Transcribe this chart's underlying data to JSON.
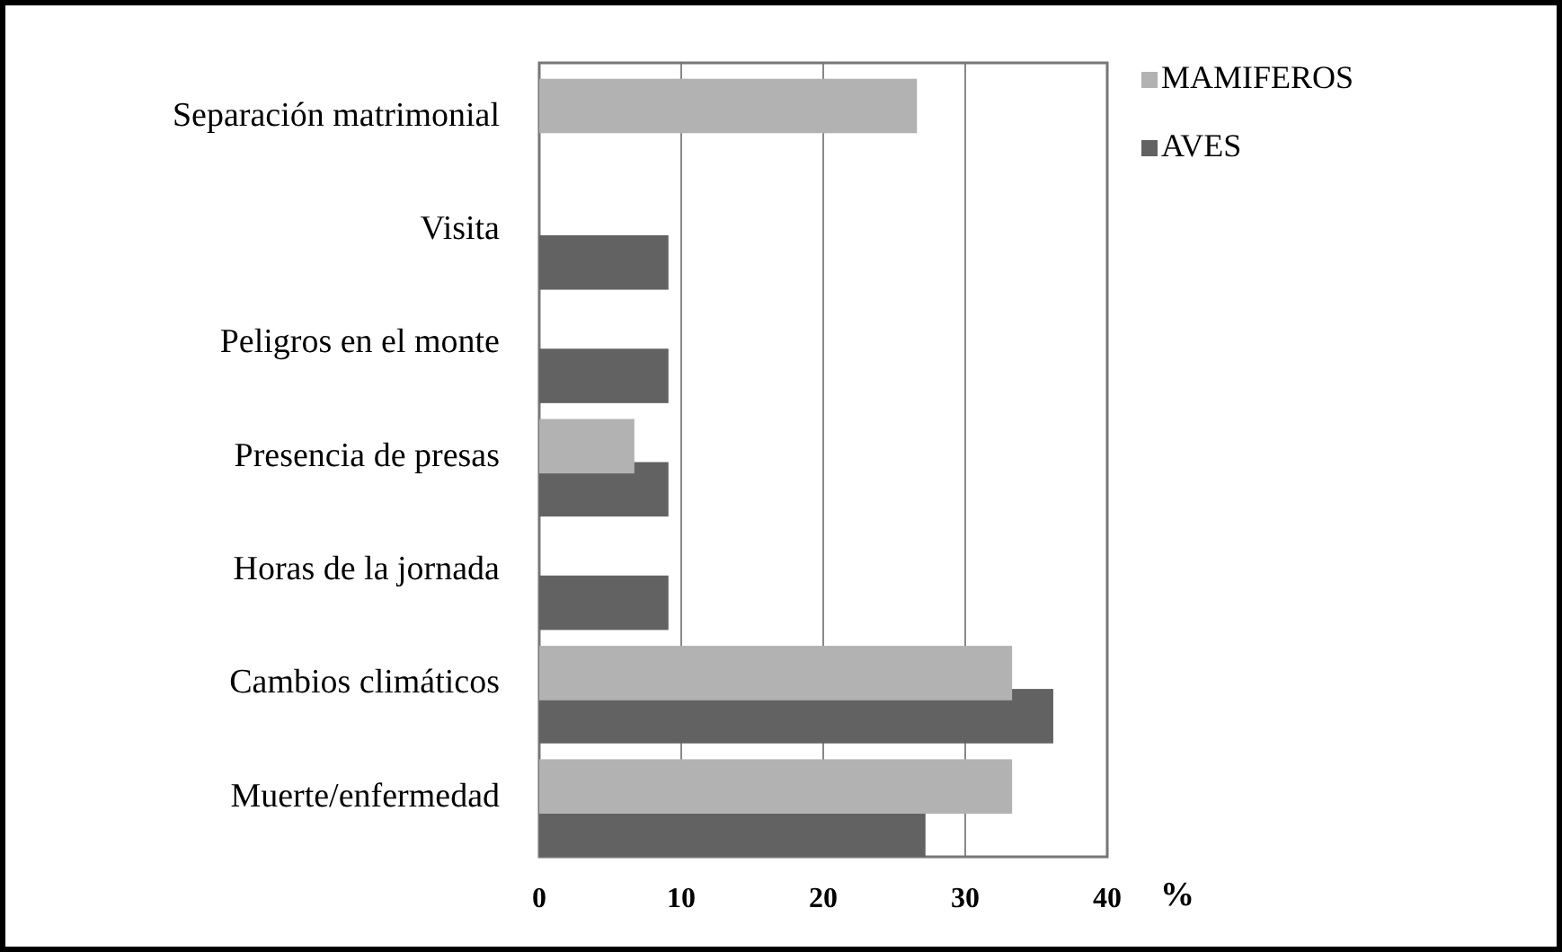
{
  "chart_data": {
    "type": "bar",
    "orientation": "horizontal",
    "xlabel": "%",
    "categories": [
      "Separación matrimonial",
      "Visita",
      "Peligros en el monte",
      "Presencia de presas",
      "Horas de la jornada",
      "Cambios climáticos",
      "Muerte/enfermedad"
    ],
    "series": [
      {
        "name": "MAMIFEROS",
        "color": "#b2b2b2",
        "values": [
          26.6,
          null,
          null,
          6.7,
          null,
          33.3,
          33.3
        ]
      },
      {
        "name": "AVES",
        "color": "#626262",
        "values": [
          null,
          9.1,
          9.1,
          9.1,
          9.1,
          36.2,
          27.2
        ]
      }
    ],
    "xlim": [
      0,
      40
    ],
    "xticks": [
      0,
      10,
      20,
      30,
      40
    ],
    "grid": "x",
    "legend": "right"
  }
}
